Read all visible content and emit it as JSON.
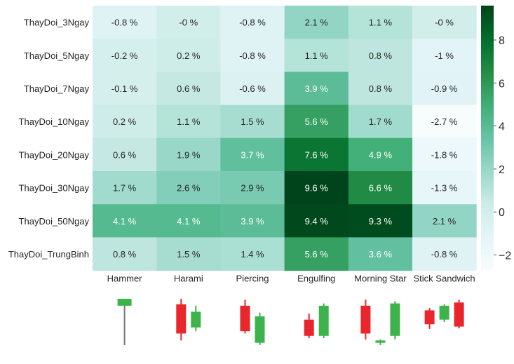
{
  "chart_data": {
    "type": "heatmap",
    "rows": [
      "ThayDoi_3Ngay",
      "ThayDoi_5Ngay",
      "ThayDoi_7Ngay",
      "ThayDoi_10Ngay",
      "ThayDoi_20Ngay",
      "ThayDoi_30Ngay",
      "ThayDoi_50Ngay",
      "ThayDoi_TrungBinh"
    ],
    "columns": [
      "Hammer",
      "Harami",
      "Piercing",
      "Engulfing",
      "Morning Star",
      "Stick Sandwich"
    ],
    "values": [
      [
        -0.8,
        -0.0,
        -0.8,
        2.1,
        1.1,
        -0.0
      ],
      [
        -0.2,
        0.2,
        -0.8,
        1.1,
        0.8,
        -1.0
      ],
      [
        -0.1,
        0.6,
        -0.6,
        3.9,
        0.8,
        -0.9
      ],
      [
        0.2,
        1.1,
        1.5,
        5.6,
        1.7,
        -2.7
      ],
      [
        0.6,
        1.9,
        3.7,
        7.6,
        4.9,
        -1.8
      ],
      [
        1.7,
        2.6,
        2.9,
        9.6,
        6.6,
        -1.3
      ],
      [
        4.1,
        4.1,
        3.9,
        9.4,
        9.3,
        2.1
      ],
      [
        0.8,
        1.5,
        1.4,
        5.6,
        3.6,
        -0.8
      ]
    ],
    "labels": [
      [
        "-0.8 %",
        "-0 %",
        "-0.8 %",
        "2.1 %",
        "1.1 %",
        "-0 %"
      ],
      [
        "-0.2 %",
        "0.2 %",
        "-0.8 %",
        "1.1 %",
        "0.8 %",
        "-1 %"
      ],
      [
        "-0.1 %",
        "0.6 %",
        "-0.6 %",
        "3.9 %",
        "0.8 %",
        "-0.9 %"
      ],
      [
        "0.2 %",
        "1.1 %",
        "1.5 %",
        "5.6 %",
        "1.7 %",
        "-2.7 %"
      ],
      [
        "0.6 %",
        "1.9 %",
        "3.7 %",
        "7.6 %",
        "4.9 %",
        "-1.8 %"
      ],
      [
        "1.7 %",
        "2.6 %",
        "2.9 %",
        "9.6 %",
        "6.6 %",
        "-1.3 %"
      ],
      [
        "4.1 %",
        "4.1 %",
        "3.9 %",
        "9.4 %",
        "9.3 %",
        "2.1 %"
      ],
      [
        "0.8 %",
        "1.5 %",
        "1.4 %",
        "5.6 %",
        "3.6 %",
        "-0.8 %"
      ]
    ],
    "colorbar": {
      "ticks": [
        -2,
        0,
        2,
        4,
        6,
        8
      ],
      "tick_labels": [
        "−2",
        "0",
        "2",
        "4",
        "6",
        "8"
      ],
      "range": [
        -2.7,
        9.6
      ]
    },
    "colormap": "BuGn",
    "colors": {
      "bull": "#3cb44b",
      "bear": "#e8262b",
      "wick": "#777777"
    },
    "candle_icons": [
      {
        "name": "hammer",
        "candles": [
          {
            "color": "bull",
            "open": 0.85,
            "close": 1.0,
            "high": 1.0,
            "low": 0.0
          }
        ]
      },
      {
        "name": "harami",
        "candles": [
          {
            "color": "bear",
            "open": 0.88,
            "close": 0.25,
            "high": 1.0,
            "low": 0.1
          },
          {
            "color": "bull",
            "open": 0.38,
            "close": 0.72,
            "high": 0.85,
            "low": 0.3
          }
        ]
      },
      {
        "name": "piercing",
        "candles": [
          {
            "color": "bear",
            "open": 0.85,
            "close": 0.3,
            "high": 0.98,
            "low": 0.25
          },
          {
            "color": "bull",
            "open": 0.05,
            "close": 0.62,
            "high": 0.7,
            "low": 0.0
          }
        ]
      },
      {
        "name": "engulfing",
        "candles": [
          {
            "color": "bear",
            "open": 0.55,
            "close": 0.2,
            "high": 0.68,
            "low": 0.15
          },
          {
            "color": "bull",
            "open": 0.2,
            "close": 0.85,
            "high": 0.9,
            "low": 0.15
          }
        ]
      },
      {
        "name": "morning-star",
        "candles": [
          {
            "color": "bear",
            "open": 0.85,
            "close": 0.25,
            "high": 0.98,
            "low": 0.12
          },
          {
            "color": "bull",
            "open": 0.05,
            "close": 0.1,
            "high": 0.12,
            "low": 0.0
          },
          {
            "color": "bull",
            "open": 0.2,
            "close": 0.9,
            "high": 0.95,
            "low": 0.12
          }
        ]
      },
      {
        "name": "stick-sandwich",
        "candles": [
          {
            "color": "bear",
            "open": 0.75,
            "close": 0.45,
            "high": 0.8,
            "low": 0.35
          },
          {
            "color": "bull",
            "open": 0.55,
            "close": 0.85,
            "high": 0.88,
            "low": 0.5
          },
          {
            "color": "bear",
            "open": 0.92,
            "close": 0.4,
            "high": 0.98,
            "low": 0.36
          }
        ]
      }
    ]
  }
}
